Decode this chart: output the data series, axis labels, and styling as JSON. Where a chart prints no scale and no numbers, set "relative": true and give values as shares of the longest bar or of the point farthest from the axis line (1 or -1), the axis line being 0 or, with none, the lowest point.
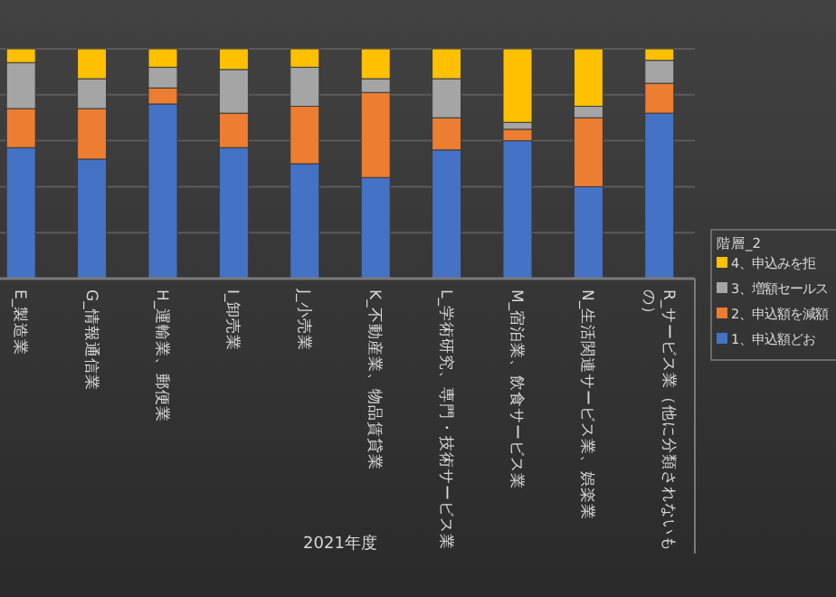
{
  "chart_data": {
    "type": "bar",
    "stacked": true,
    "relative": true,
    "grid": "y",
    "legend": "right",
    "legend_title": "階層_2",
    "xlabel": "2021年度",
    "categories": [
      "E_製造業",
      "G_情報通信業",
      "H_運輸業、郵便業",
      "I_卸売業",
      "J_小売業",
      "K_不動産業、物品賃貸業",
      "L_学術研究、専門・技術サービス業",
      "M_宿泊業、飲食サービス業",
      "N_生活関連サービス業、娯楽業",
      "R_サービス業（他に分類されないもの）"
    ],
    "series": [
      {
        "name": "1、申込額どお",
        "color": "#4472c4",
        "values": [
          0.57,
          0.52,
          0.76,
          0.57,
          0.5,
          0.44,
          0.56,
          0.6,
          0.4,
          0.72
        ]
      },
      {
        "name": "2、申込額を減額",
        "color": "#ed7d31",
        "values": [
          0.17,
          0.22,
          0.07,
          0.15,
          0.25,
          0.37,
          0.14,
          0.05,
          0.3,
          0.13
        ]
      },
      {
        "name": "3、増額セールス",
        "color": "#a5a5a5",
        "values": [
          0.2,
          0.13,
          0.09,
          0.19,
          0.17,
          0.06,
          0.17,
          0.03,
          0.05,
          0.1
        ]
      },
      {
        "name": "4、申込みを拒",
        "color": "#ffc000",
        "values": [
          0.06,
          0.13,
          0.08,
          0.09,
          0.08,
          0.13,
          0.13,
          0.32,
          0.25,
          0.05
        ]
      }
    ]
  }
}
